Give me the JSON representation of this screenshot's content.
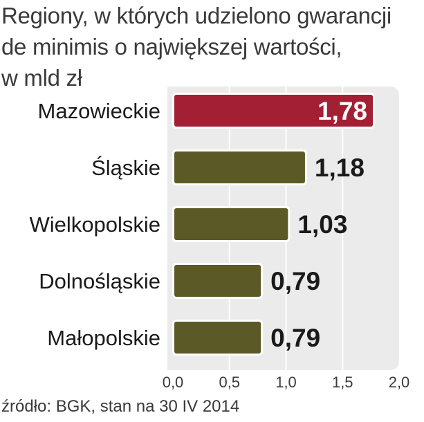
{
  "chart_data": {
    "type": "bar",
    "orientation": "horizontal",
    "title_lines": [
      "Regiony, w których udzielono gwarancji",
      "de minimis o największej wartości,",
      "w mld zł"
    ],
    "categories": [
      "Mazowieckie",
      "Śląskie",
      "Wielkopolskie",
      "Dolnośląskie",
      "Małopolskie"
    ],
    "values": [
      1.78,
      1.18,
      1.03,
      0.79,
      0.79
    ],
    "value_labels": [
      "1,78",
      "1,18",
      "1,03",
      "0,79",
      "0,79"
    ],
    "xlim": [
      0,
      2.0
    ],
    "ticks": [
      0,
      0.5,
      1.0,
      1.5,
      2.0
    ],
    "tick_labels": [
      "0,0",
      "0,5",
      "1,0",
      "1,5",
      "2,0"
    ],
    "grid": true,
    "colors": {
      "highlight": "#a31f34",
      "bar": "#5b5a26",
      "plot_background": "#ebebeb",
      "grid": "#ffffff"
    },
    "source": "źródło: BGK, stan na 30 IV 2014"
  }
}
